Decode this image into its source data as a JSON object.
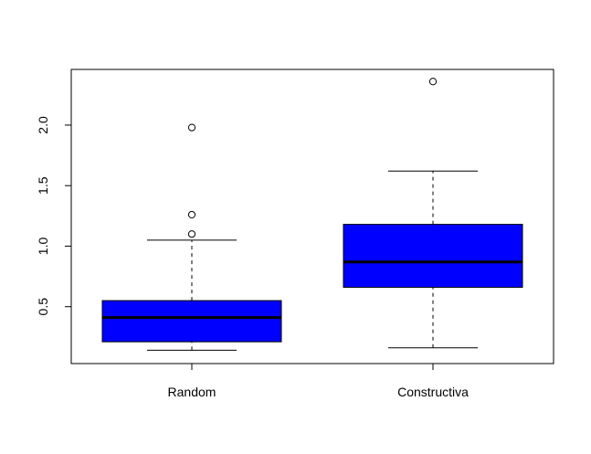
{
  "chart_data": {
    "type": "boxplot",
    "title": "",
    "xlabel": "",
    "ylabel": "",
    "categories": [
      "Random",
      "Constructiva"
    ],
    "ylim": [
      0.03,
      2.46
    ],
    "y_ticks": [
      0.5,
      1.0,
      1.5,
      2.0
    ],
    "y_tick_labels": [
      "0.5",
      "1.0",
      "1.5",
      "2.0"
    ],
    "fill_color": "#0000ff",
    "grid": false,
    "boxes": [
      {
        "name": "Random",
        "whisker_low": 0.14,
        "q1": 0.21,
        "median": 0.41,
        "q3": 0.55,
        "whisker_high": 1.05,
        "outliers": [
          1.1,
          1.26,
          1.98
        ]
      },
      {
        "name": "Constructiva",
        "whisker_low": 0.16,
        "q1": 0.66,
        "median": 0.87,
        "q3": 1.18,
        "whisker_high": 1.62,
        "outliers": [
          2.36
        ]
      }
    ]
  }
}
